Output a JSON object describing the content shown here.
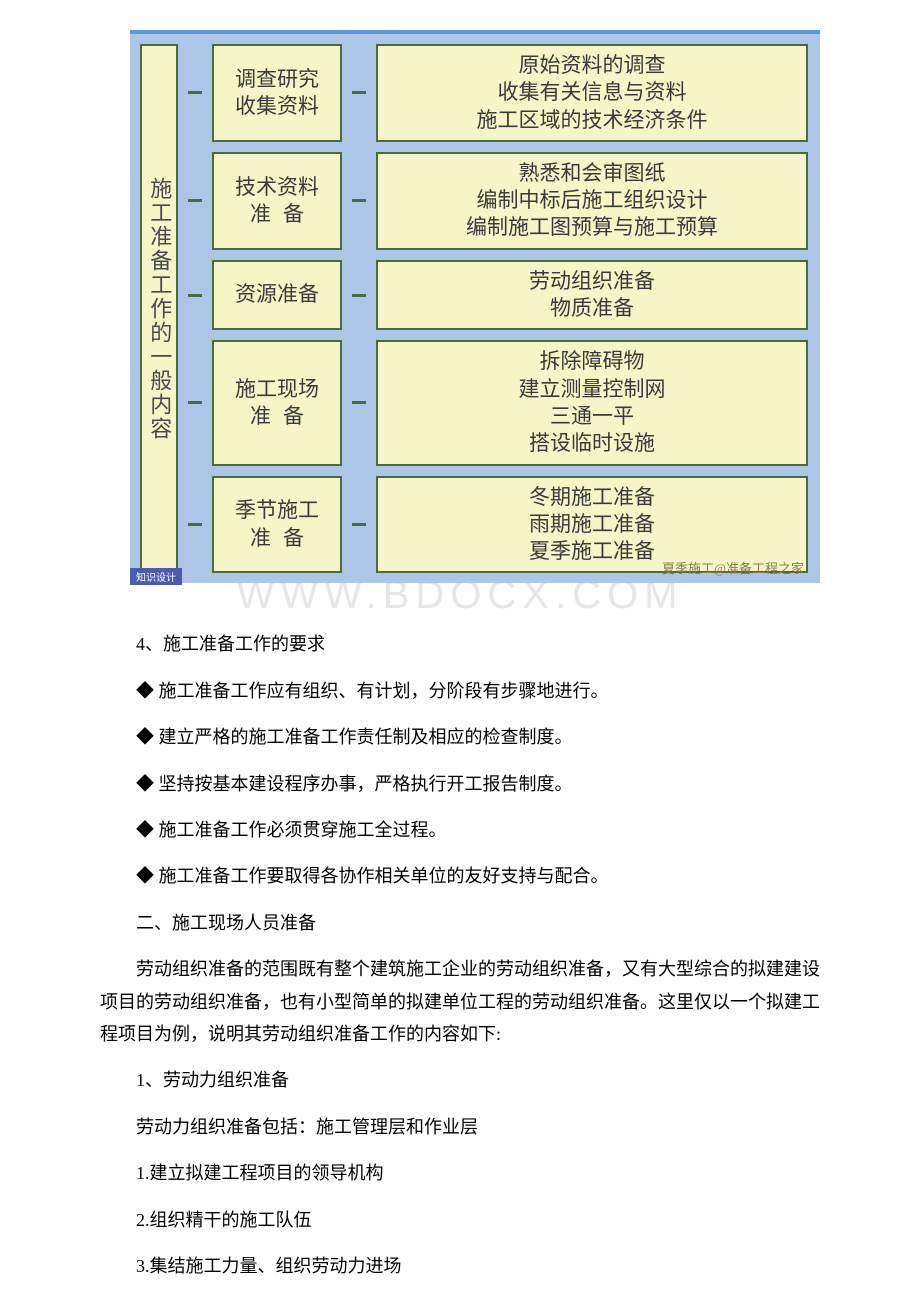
{
  "diagram": {
    "left_label": "施工准备工作的一般内容",
    "footer_tag": "知识设计",
    "overlay_mark": "夏季施工@准备工程之家",
    "rows": [
      {
        "mid": [
          "调查研究",
          "收集资料"
        ],
        "right": [
          "原始资料的调查",
          "收集有关信息与资料",
          "施工区域的技术经济条件"
        ]
      },
      {
        "mid": [
          "技术资料"
        ],
        "mid_spaced": "准备",
        "right": [
          "熟悉和会审图纸",
          "编制中标后施工组织设计",
          "编制施工图预算与施工预算"
        ]
      },
      {
        "mid": [
          "资源准备"
        ],
        "right": [
          "劳动组织准备",
          "物质准备"
        ]
      },
      {
        "mid": [
          "施工现场"
        ],
        "mid_spaced": "准备",
        "right": [
          "拆除障碍物",
          "建立测量控制网",
          "三通一平",
          "搭设临时设施"
        ]
      },
      {
        "mid": [
          "季节施工"
        ],
        "mid_spaced": "准备",
        "right": [
          "冬期施工准备",
          "雨期施工准备",
          "夏季施工准备"
        ]
      }
    ],
    "colors": {
      "border_top": "#5b9bd5",
      "diagram_bg": "#adc5e7",
      "box_bg": "#f5f5c8",
      "box_border": "#4a6b3a",
      "footer_bg": "#4a5bb0"
    }
  },
  "watermark": "WWW.BDOCX.COM",
  "texts": {
    "t4": "4、施工准备工作的要求",
    "b1": "◆ 施工准备工作应有组织、有计划，分阶段有步骤地进行。",
    "b2": "◆ 建立严格的施工准备工作责任制及相应的检查制度。",
    "b3": "◆ 坚持按基本建设程序办事，严格执行开工报告制度。",
    "b4": "◆ 施工准备工作必须贯穿施工全过程。",
    "b5": "◆ 施工准备工作要取得各协作相关单位的友好支持与配合。",
    "s2": "二、施工现场人员准备",
    "p1": "劳动组织准备的范围既有整个建筑施工企业的劳动组织准备，又有大型综合的拟建建设项目的劳动组织准备，也有小型简单的拟建单位工程的劳动组织准备。这里仅以一个拟建工程项目为例，说明其劳动组织准备工作的内容如下:",
    "n1": "1、劳动力组织准备",
    "n1d": "劳动力组织准备包括：施工管理层和作业层",
    "n1_1": "1.建立拟建工程项目的领导机构",
    "n1_2": "2.组织精干的施工队伍",
    "n1_3": "3.集结施工力量、组织劳动力进场"
  }
}
